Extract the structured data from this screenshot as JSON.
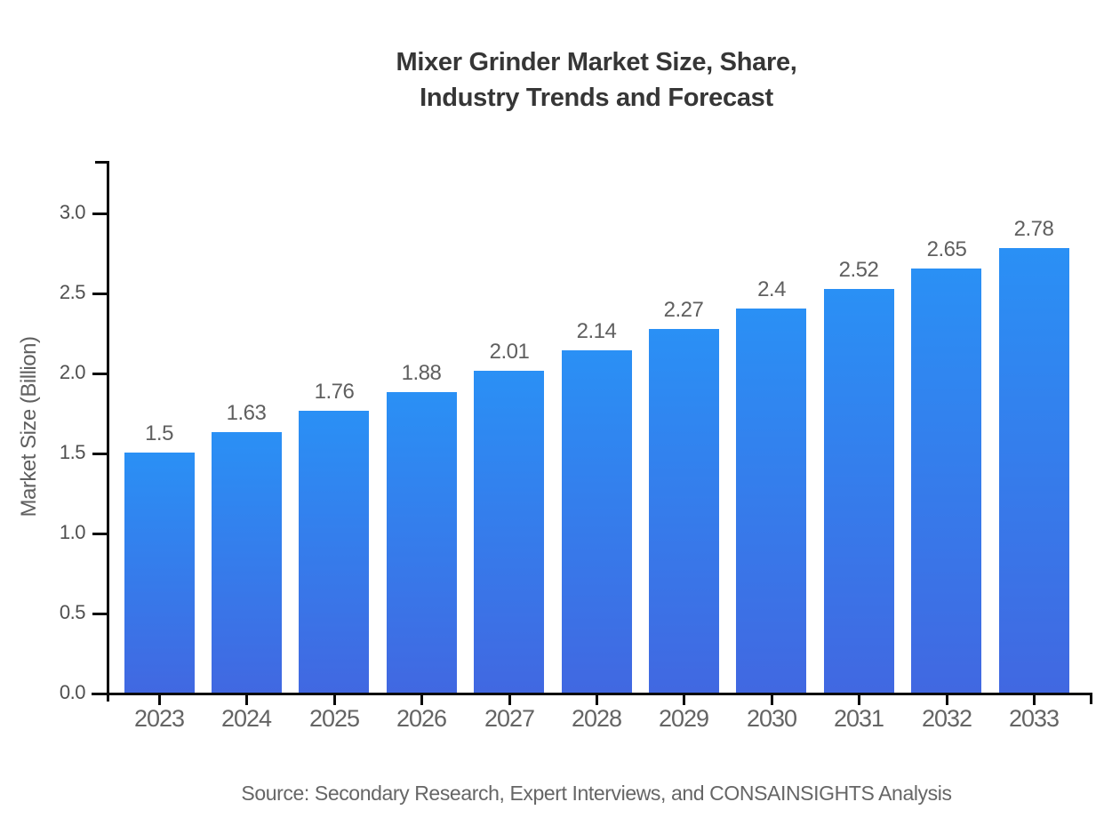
{
  "title": {
    "line1": "Mixer Grinder Market Size, Share,",
    "line2": "Industry Trends and Forecast"
  },
  "source": "Source: Secondary Research, Expert Interviews, and CONSAINSIGHTS Analysis",
  "colors": {
    "bar_gradient_top": "#2A90F5",
    "bar_gradient_bottom": "#4168E1",
    "axis": "#0a0a0a",
    "title_text": "#363636",
    "label_text": "#5f5f5f"
  },
  "chart_data": {
    "type": "bar",
    "title": "Mixer Grinder Market Size, Share, Industry Trends and Forecast",
    "xlabel": "",
    "ylabel": "Market Size (Billion)",
    "categories": [
      "2023",
      "2024",
      "2025",
      "2026",
      "2027",
      "2028",
      "2029",
      "2030",
      "2031",
      "2032",
      "2033"
    ],
    "values": [
      1.5,
      1.63,
      1.76,
      1.88,
      2.01,
      2.14,
      2.27,
      2.4,
      2.52,
      2.65,
      2.78
    ],
    "value_labels": [
      "1.5",
      "1.63",
      "1.76",
      "1.88",
      "2.01",
      "2.14",
      "2.27",
      "2.4",
      "2.52",
      "2.65",
      "2.78"
    ],
    "yticks": [
      0.0,
      0.5,
      1.0,
      1.5,
      2.0,
      2.5,
      3.0
    ],
    "ytick_labels": [
      "0.0",
      "0.5",
      "1.0",
      "1.5",
      "2.0",
      "2.5",
      "3.0"
    ],
    "ylim": [
      0,
      3.33
    ],
    "grid": false,
    "legend": false
  }
}
